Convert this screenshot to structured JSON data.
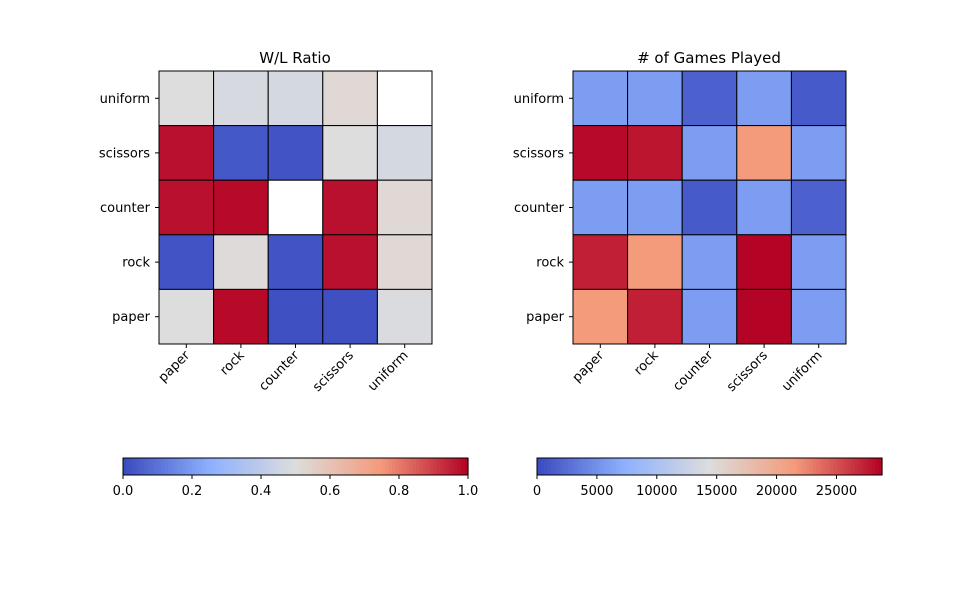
{
  "chart_data": [
    {
      "type": "heatmap",
      "title": "W/L Ratio",
      "x_categories": [
        "paper",
        "rock",
        "counter",
        "scissors",
        "uniform"
      ],
      "y_categories": [
        "uniform",
        "scissors",
        "counter",
        "rock",
        "paper"
      ],
      "values": [
        [
          0.5,
          0.48,
          0.47,
          0.52,
          null
        ],
        [
          0.98,
          0.03,
          0.02,
          0.5,
          0.47
        ],
        [
          0.98,
          0.99,
          null,
          0.98,
          0.52
        ],
        [
          0.02,
          0.51,
          0.02,
          0.98,
          0.52
        ],
        [
          0.5,
          0.99,
          0.01,
          0.01,
          0.49
        ]
      ],
      "colormap": "coolwarm",
      "vmin": 0,
      "vmax": 1,
      "colorbar_ticks": [
        "0.0",
        "0.2",
        "0.4",
        "0.6",
        "0.8",
        "1.0"
      ],
      "colorbar_tick_values": [
        0,
        0.2,
        0.4,
        0.6,
        0.8,
        1.0
      ]
    },
    {
      "type": "heatmap",
      "title": "# of Games Played",
      "x_categories": [
        "paper",
        "rock",
        "counter",
        "scissors",
        "uniform"
      ],
      "y_categories": [
        "uniform",
        "scissors",
        "counter",
        "rock",
        "paper"
      ],
      "values": [
        [
          5800,
          5800,
          1500,
          5800,
          1000
        ],
        [
          28500,
          28000,
          5800,
          21500,
          5800
        ],
        [
          5800,
          5800,
          1000,
          5800,
          1500
        ],
        [
          27500,
          21500,
          5800,
          28800,
          5800
        ],
        [
          21500,
          27500,
          5800,
          28800,
          5800
        ]
      ],
      "colormap": "coolwarm",
      "vmin": 0,
      "vmax": 28800,
      "colorbar_ticks": [
        "0",
        "5000",
        "10000",
        "15000",
        "20000",
        "25000"
      ],
      "colorbar_tick_values": [
        0,
        5000,
        10000,
        15000,
        20000,
        25000
      ]
    }
  ]
}
